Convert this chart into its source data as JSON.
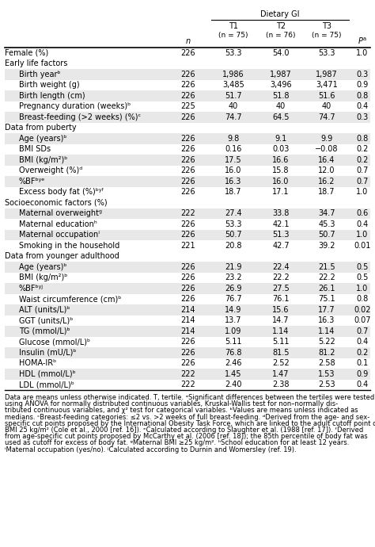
{
  "title": "Dietary GI",
  "rows": [
    {
      "label": "Female (%)",
      "indent": 0,
      "section": false,
      "n": "226",
      "t1": "53.3",
      "t2": "54.0",
      "t3": "53.3",
      "p": "1.0",
      "shade": false
    },
    {
      "label": "Early life factors",
      "indent": 0,
      "section": true,
      "n": "",
      "t1": "",
      "t2": "",
      "t3": "",
      "p": "",
      "shade": false
    },
    {
      "label": "Birth yearᵇ",
      "indent": 1,
      "section": false,
      "n": "226",
      "t1": "1,986",
      "t2": "1,987",
      "t3": "1,987",
      "p": "0.3",
      "shade": true
    },
    {
      "label": "Birth weight (g)",
      "indent": 1,
      "section": false,
      "n": "226",
      "t1": "3,485",
      "t2": "3,496",
      "t3": "3,471",
      "p": "0.9",
      "shade": false
    },
    {
      "label": "Birth length (cm)",
      "indent": 1,
      "section": false,
      "n": "226",
      "t1": "51.7",
      "t2": "51.8",
      "t3": "51.6",
      "p": "0.8",
      "shade": true
    },
    {
      "label": "Pregnancy duration (weeks)ᵇ",
      "indent": 1,
      "section": false,
      "n": "225",
      "t1": "40",
      "t2": "40",
      "t3": "40",
      "p": "0.4",
      "shade": false
    },
    {
      "label": "Breast-feeding (>2 weeks) (%)ᶜ",
      "indent": 1,
      "section": false,
      "n": "226",
      "t1": "74.7",
      "t2": "64.5",
      "t3": "74.7",
      "p": "0.3",
      "shade": true
    },
    {
      "label": "Data from puberty",
      "indent": 0,
      "section": true,
      "n": "",
      "t1": "",
      "t2": "",
      "t3": "",
      "p": "",
      "shade": false
    },
    {
      "label": "Age (years)ᵇ",
      "indent": 1,
      "section": false,
      "n": "226",
      "t1": "9.8",
      "t2": "9.1",
      "t3": "9.9",
      "p": "0.8",
      "shade": true
    },
    {
      "label": "BMI SDs",
      "indent": 1,
      "section": false,
      "n": "226",
      "t1": "0.16",
      "t2": "0.03",
      "t3": "−0.08",
      "p": "0.2",
      "shade": false
    },
    {
      "label": "BMI (kg/m²)ᵇ",
      "indent": 1,
      "section": false,
      "n": "226",
      "t1": "17.5",
      "t2": "16.6",
      "t3": "16.4",
      "p": "0.2",
      "shade": true
    },
    {
      "label": "Overweight (%)ᵈ",
      "indent": 1,
      "section": false,
      "n": "226",
      "t1": "16.0",
      "t2": "15.8",
      "t3": "12.0",
      "p": "0.7",
      "shade": false
    },
    {
      "label": "%BFᵇʸᵉ",
      "indent": 1,
      "section": false,
      "n": "226",
      "t1": "16.3",
      "t2": "16.0",
      "t3": "16.2",
      "p": "0.7",
      "shade": true
    },
    {
      "label": "Excess body fat (%)ᵇʸᶠ",
      "indent": 1,
      "section": false,
      "n": "226",
      "t1": "18.7",
      "t2": "17.1",
      "t3": "18.7",
      "p": "1.0",
      "shade": false
    },
    {
      "label": "Socioeconomic factors (%)",
      "indent": 0,
      "section": true,
      "n": "",
      "t1": "",
      "t2": "",
      "t3": "",
      "p": "",
      "shade": false
    },
    {
      "label": "Maternal overweightᵍ",
      "indent": 1,
      "section": false,
      "n": "222",
      "t1": "27.4",
      "t2": "33.8",
      "t3": "34.7",
      "p": "0.6",
      "shade": true
    },
    {
      "label": "Maternal educationʰ",
      "indent": 1,
      "section": false,
      "n": "226",
      "t1": "53.3",
      "t2": "42.1",
      "t3": "45.3",
      "p": "0.4",
      "shade": false
    },
    {
      "label": "Maternal occupationⁱ",
      "indent": 1,
      "section": false,
      "n": "226",
      "t1": "50.7",
      "t2": "51.3",
      "t3": "50.7",
      "p": "1.0",
      "shade": true
    },
    {
      "label": "Smoking in the household",
      "indent": 1,
      "section": false,
      "n": "221",
      "t1": "20.8",
      "t2": "42.7",
      "t3": "39.2",
      "p": "0.01",
      "shade": false
    },
    {
      "label": "Data from younger adulthood",
      "indent": 0,
      "section": true,
      "n": "",
      "t1": "",
      "t2": "",
      "t3": "",
      "p": "",
      "shade": false
    },
    {
      "label": "Age (years)ᵇ",
      "indent": 1,
      "section": false,
      "n": "226",
      "t1": "21.9",
      "t2": "22.4",
      "t3": "21.5",
      "p": "0.5",
      "shade": true
    },
    {
      "label": "BMI (kg/m²)ᵇ",
      "indent": 1,
      "section": false,
      "n": "226",
      "t1": "23.2",
      "t2": "22.2",
      "t3": "22.2",
      "p": "0.5",
      "shade": false
    },
    {
      "label": "%BFᵇʸʲ",
      "indent": 1,
      "section": false,
      "n": "226",
      "t1": "26.9",
      "t2": "27.5",
      "t3": "26.1",
      "p": "1.0",
      "shade": true
    },
    {
      "label": "Waist circumference (cm)ᵇ",
      "indent": 1,
      "section": false,
      "n": "226",
      "t1": "76.7",
      "t2": "76.1",
      "t3": "75.1",
      "p": "0.8",
      "shade": false
    },
    {
      "label": "ALT (units/L)ᵇ",
      "indent": 1,
      "section": false,
      "n": "214",
      "t1": "14.9",
      "t2": "15.6",
      "t3": "17.7",
      "p": "0.02",
      "shade": true
    },
    {
      "label": "GGT (units/L)ᵇ",
      "indent": 1,
      "section": false,
      "n": "214",
      "t1": "13.7",
      "t2": "14.7",
      "t3": "16.3",
      "p": "0.07",
      "shade": false
    },
    {
      "label": "TG (mmol/L)ᵇ",
      "indent": 1,
      "section": false,
      "n": "214",
      "t1": "1.09",
      "t2": "1.14",
      "t3": "1.14",
      "p": "0.7",
      "shade": true
    },
    {
      "label": "Glucose (mmol/L)ᵇ",
      "indent": 1,
      "section": false,
      "n": "226",
      "t1": "5.11",
      "t2": "5.11",
      "t3": "5.22",
      "p": "0.4",
      "shade": false
    },
    {
      "label": "Insulin (mU/L)ᵇ",
      "indent": 1,
      "section": false,
      "n": "226",
      "t1": "76.8",
      "t2": "81.5",
      "t3": "81.2",
      "p": "0.2",
      "shade": true
    },
    {
      "label": "HOMA-IRᵇ",
      "indent": 1,
      "section": false,
      "n": "226",
      "t1": "2.46",
      "t2": "2.52",
      "t3": "2.58",
      "p": "0.1",
      "shade": false
    },
    {
      "label": "HDL (mmol/L)ᵇ",
      "indent": 1,
      "section": false,
      "n": "222",
      "t1": "1.45",
      "t2": "1.47",
      "t3": "1.53",
      "p": "0.9",
      "shade": true
    },
    {
      "label": "LDL (mmol/L)ᵇ",
      "indent": 1,
      "section": false,
      "n": "222",
      "t1": "2.40",
      "t2": "2.38",
      "t3": "2.53",
      "p": "0.4",
      "shade": false
    }
  ],
  "footnote_lines": [
    "Data are means unless otherwise indicated. T, tertile. ᵃSignificant differences between the tertiles were tested",
    "using ANOVA for normally distributed continuous variables, Kruskal-Wallis test for non–normally dis-",
    "tributed continuous variables, and χ² test for categorical variables. ᵇValues are means unless indicated as",
    "medians. ᶜBreast-feeding categories: ≤2 vs. >2 weeks of full breast-feeding. ᵈDerived from the age- and sex-",
    "specific cut points proposed by the International Obesity Task Force, which are linked to the adult cutoff point of",
    "BMI 25 kg/m² (Cole et al., 2000 [ref. 16]). ᵉCalculated according to Slaughter et al. (1988 [ref. 17]). ᶠDerived",
    "from age-specific cut points proposed by McCarthy et al. (2006 [ref. 18]); the 85th percentile of body fat was",
    "used as cutoff for excess of body fat. ᵍMaternal BMI ≥25 kg/m². ʰSchool education for at least 12 years.",
    "ⁱMaternal occupation (yes/no). ʲCalculated according to Durnin and Womersley (ref. 19)."
  ],
  "shade_color": "#e8e8e8",
  "bg_color": "#ffffff",
  "font_size": 7.0,
  "footnote_font_size": 6.0,
  "header_font_size": 7.0
}
